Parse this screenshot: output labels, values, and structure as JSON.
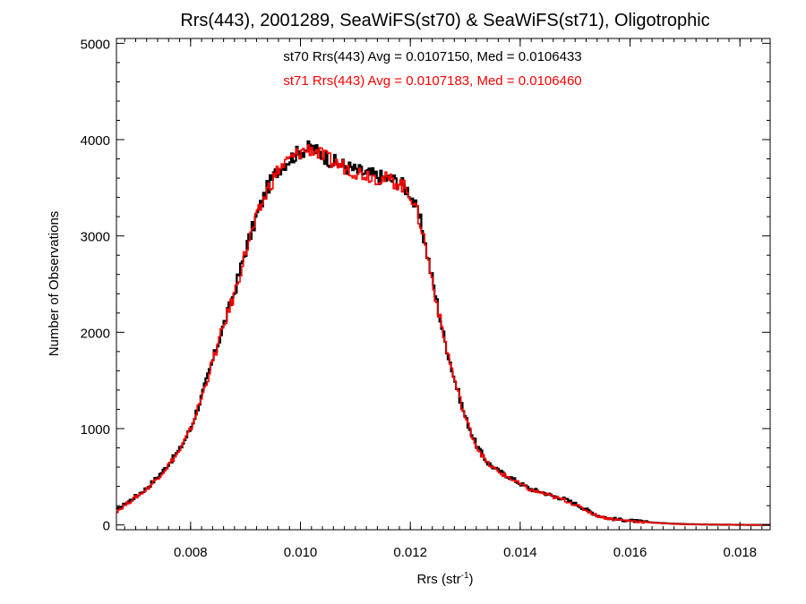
{
  "chart_data": {
    "type": "line",
    "title": "Rrs(443), 2001289, SeaWiFS(st70) & SeaWiFS(st71), Oligotrophic",
    "xlabel": {
      "base": "Rrs (str",
      "sup": "-1",
      "end": ")"
    },
    "ylabel": "Number of Observations",
    "xlim": [
      0.00665,
      0.01855
    ],
    "ylim": [
      -50,
      5050
    ],
    "xticks": [
      0.008,
      0.01,
      0.012,
      0.014,
      0.016,
      0.018
    ],
    "xtick_labels": [
      "0.008",
      "0.010",
      "0.012",
      "0.014",
      "0.016",
      "0.018"
    ],
    "yticks": [
      0,
      1000,
      2000,
      3000,
      4000,
      5000
    ],
    "ytick_labels": [
      "0",
      "1000",
      "2000",
      "3000",
      "4000",
      "5000"
    ],
    "annotations": [
      {
        "text": "st70 Rrs(443) Avg = 0.0107150, Med = 0.0106433",
        "color": "#000000"
      },
      {
        "text": "st71 Rrs(443) Avg = 0.0107183, Med = 0.0106460",
        "color": "#ff0000"
      }
    ],
    "series": [
      {
        "color": "#000000",
        "x": [
          0.00665,
          0.0072,
          0.0075,
          0.0078,
          0.008,
          0.0082,
          0.0084,
          0.0086,
          0.0088,
          0.009,
          0.0092,
          0.0094,
          0.0096,
          0.0098,
          0.01,
          0.0102,
          0.0104,
          0.0106,
          0.0108,
          0.011,
          0.0112,
          0.0114,
          0.0116,
          0.0118,
          0.012,
          0.0122,
          0.0124,
          0.0126,
          0.0128,
          0.013,
          0.0132,
          0.0134,
          0.0136,
          0.0138,
          0.014,
          0.0142,
          0.0144,
          0.0146,
          0.0148,
          0.015,
          0.0152,
          0.0154,
          0.0156,
          0.0158,
          0.016,
          0.0162,
          0.0164,
          0.0166,
          0.0168,
          0.017,
          0.0172,
          0.0174,
          0.0176,
          0.0178,
          0.018,
          0.0182,
          0.0185
        ],
        "y": [
          150,
          380,
          560,
          780,
          1000,
          1330,
          1700,
          2070,
          2420,
          2850,
          3200,
          3500,
          3700,
          3800,
          3880,
          3920,
          3840,
          3770,
          3730,
          3680,
          3650,
          3620,
          3590,
          3560,
          3450,
          3120,
          2550,
          1980,
          1520,
          1120,
          830,
          650,
          560,
          500,
          430,
          370,
          340,
          300,
          270,
          220,
          160,
          100,
          70,
          55,
          45,
          35,
          25,
          18,
          12,
          8,
          6,
          4,
          3,
          2,
          1,
          0,
          0
        ]
      },
      {
        "color": "#ff0000",
        "x": [
          0.00665,
          0.0072,
          0.0075,
          0.0078,
          0.008,
          0.0082,
          0.0084,
          0.0086,
          0.0088,
          0.009,
          0.0092,
          0.0094,
          0.0096,
          0.0098,
          0.01,
          0.0102,
          0.0104,
          0.0106,
          0.0108,
          0.011,
          0.0112,
          0.0114,
          0.0116,
          0.0118,
          0.012,
          0.0122,
          0.0124,
          0.0126,
          0.0128,
          0.013,
          0.0132,
          0.0134,
          0.0136,
          0.0138,
          0.014,
          0.0142,
          0.0144,
          0.0146,
          0.0148,
          0.015,
          0.0152,
          0.0154,
          0.0156,
          0.0158,
          0.016,
          0.0162,
          0.0164,
          0.0166,
          0.0168,
          0.017,
          0.0172,
          0.0174,
          0.0176,
          0.0178,
          0.018,
          0.0182,
          0.0185
        ],
        "y": [
          140,
          370,
          550,
          770,
          990,
          1320,
          1690,
          2060,
          2400,
          2830,
          3180,
          3480,
          3690,
          3790,
          3870,
          3910,
          3830,
          3760,
          3720,
          3670,
          3640,
          3610,
          3580,
          3550,
          3440,
          3110,
          2540,
          1970,
          1510,
          1110,
          820,
          640,
          550,
          490,
          420,
          360,
          330,
          290,
          260,
          210,
          150,
          95,
          68,
          52,
          43,
          33,
          24,
          17,
          11,
          7,
          5,
          4,
          3,
          2,
          1,
          0,
          0
        ]
      }
    ]
  }
}
